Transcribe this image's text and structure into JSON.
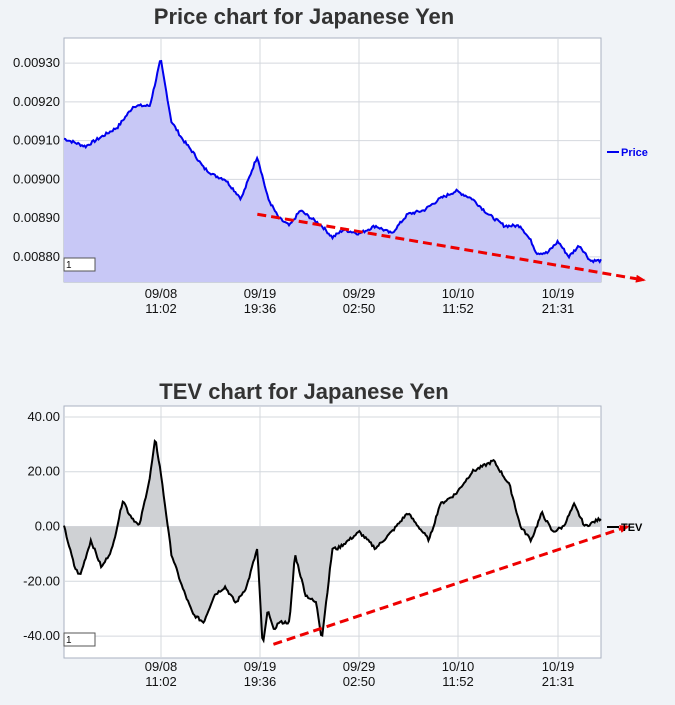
{
  "chart_data": [
    {
      "type": "area",
      "title": "Price chart for Japanese Yen",
      "xlabel": "",
      "ylabel": "",
      "x_ticks": [
        "09/08\n11:02",
        "09/19\n19:36",
        "09/29\n02:50",
        "10/10\n11:52",
        "10/19\n21:31"
      ],
      "y_ticks": [
        "0.00930",
        "0.00920",
        "0.00910",
        "0.00900",
        "0.00890",
        "0.00880"
      ],
      "ylim": [
        0.008735,
        0.009365
      ],
      "x_positions": [
        0.0,
        0.04,
        0.07,
        0.1,
        0.13,
        0.16,
        0.18,
        0.19,
        0.2,
        0.22,
        0.24,
        0.26,
        0.28,
        0.3,
        0.33,
        0.36,
        0.38,
        0.4,
        0.42,
        0.44,
        0.46,
        0.48,
        0.5,
        0.52,
        0.55,
        0.58,
        0.61,
        0.64,
        0.67,
        0.7,
        0.73,
        0.76,
        0.79,
        0.82,
        0.85,
        0.87,
        0.88,
        0.9,
        0.92,
        0.94,
        0.96,
        0.98,
        1.0
      ],
      "legend_position": "right",
      "grid": true,
      "series": [
        {
          "name": "Price",
          "color": "#0000ee",
          "fill": "#c8c8f6",
          "values": [
            0.009105,
            0.009085,
            0.00911,
            0.009135,
            0.00919,
            0.00919,
            0.00931,
            0.00923,
            0.00915,
            0.009105,
            0.00907,
            0.00903,
            0.00901,
            0.009,
            0.00895,
            0.00906,
            0.00895,
            0.0089,
            0.00888,
            0.00892,
            0.0089,
            0.00888,
            0.00885,
            0.00887,
            0.00886,
            0.00888,
            0.00886,
            0.00891,
            0.00892,
            0.00895,
            0.00897,
            0.00895,
            0.00891,
            0.00888,
            0.00888,
            0.00884,
            0.00881,
            0.00881,
            0.00884,
            0.0088,
            0.00883,
            0.00879,
            0.00879
          ]
        }
      ],
      "annotations": [
        {
          "type": "trend-arrow",
          "color": "#ee0000",
          "from": {
            "x": 0.36,
            "y": 0.00891
          },
          "to": {
            "x": 1.08,
            "y": 0.00874
          }
        }
      ],
      "input_box": "1"
    },
    {
      "type": "area",
      "title": "TEV chart for Japanese Yen",
      "xlabel": "",
      "ylabel": "",
      "x_ticks": [
        "09/08\n11:02",
        "09/19\n19:36",
        "09/29\n02:50",
        "10/10\n11:52",
        "10/19\n21:31"
      ],
      "y_ticks": [
        "40.00",
        "20.00",
        "0.00",
        "-20.00",
        "-40.00"
      ],
      "ylim": [
        -48,
        44
      ],
      "baseline": 0,
      "x_positions": [
        0.0,
        0.02,
        0.03,
        0.05,
        0.07,
        0.09,
        0.11,
        0.12,
        0.14,
        0.16,
        0.17,
        0.18,
        0.2,
        0.22,
        0.24,
        0.26,
        0.28,
        0.3,
        0.32,
        0.34,
        0.36,
        0.37,
        0.38,
        0.39,
        0.4,
        0.42,
        0.43,
        0.45,
        0.47,
        0.48,
        0.5,
        0.51,
        0.53,
        0.55,
        0.58,
        0.61,
        0.64,
        0.68,
        0.7,
        0.73,
        0.76,
        0.8,
        0.83,
        0.85,
        0.87,
        0.89,
        0.91,
        0.93,
        0.95,
        0.97,
        1.0
      ],
      "legend_position": "right",
      "grid": true,
      "series": [
        {
          "name": "TEV",
          "color": "#000000",
          "fill": "#cfd1d4",
          "values": [
            0,
            -15,
            -18,
            -5,
            -15,
            -8,
            10,
            5,
            0,
            18,
            32,
            20,
            -10,
            -22,
            -32,
            -35,
            -25,
            -22,
            -28,
            -22,
            -8,
            -44,
            -30,
            -38,
            -35,
            -35,
            -10,
            -25,
            -28,
            -41,
            -8,
            -8,
            -5,
            -2,
            -8,
            -2,
            5,
            -5,
            8,
            12,
            20,
            24,
            15,
            0,
            -5,
            5,
            -2,
            0,
            8,
            0,
            3
          ]
        }
      ],
      "annotations": [
        {
          "type": "trend-arrow",
          "color": "#ee0000",
          "from": {
            "x": 0.39,
            "y": -43
          },
          "to": {
            "x": 1.05,
            "y": 0
          }
        }
      ],
      "input_box": "1"
    }
  ]
}
